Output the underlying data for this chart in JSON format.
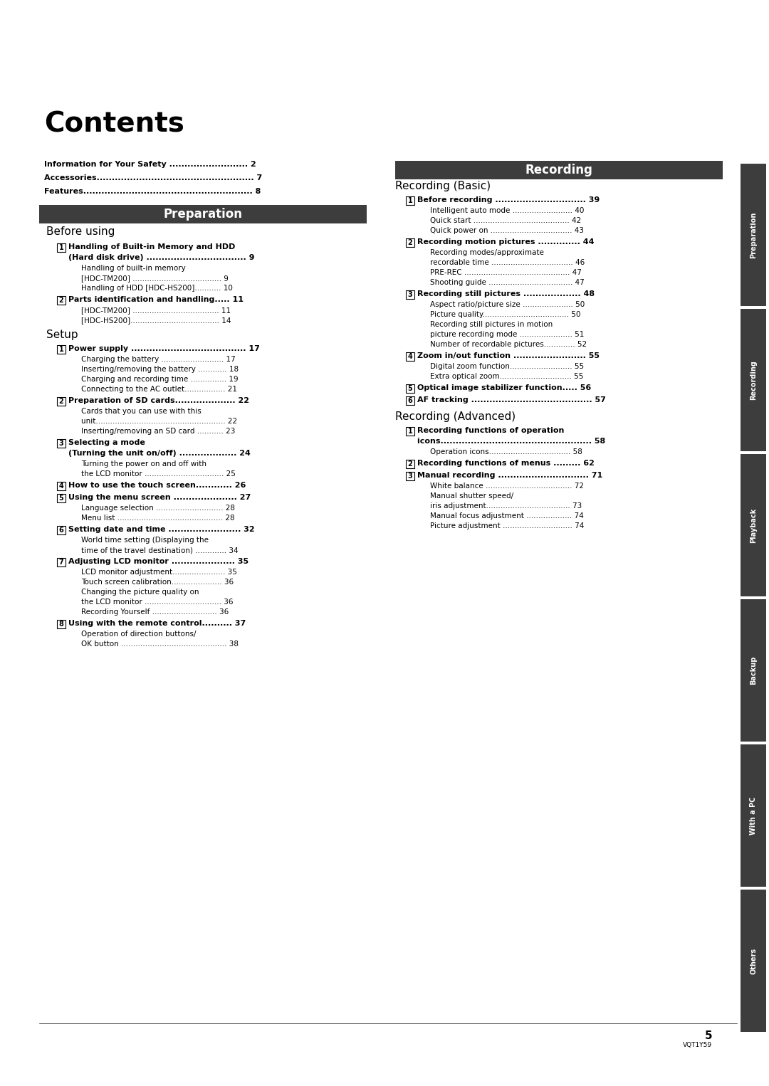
{
  "bg_color": "#ffffff",
  "title": "Contents",
  "header_bg": "#3d3d3d",
  "header_fg": "#ffffff",
  "tab_bg": "#3d3d3d",
  "tab_fg": "#ffffff",
  "footer_text": "5",
  "footer_sub": "VQT1Y59"
}
